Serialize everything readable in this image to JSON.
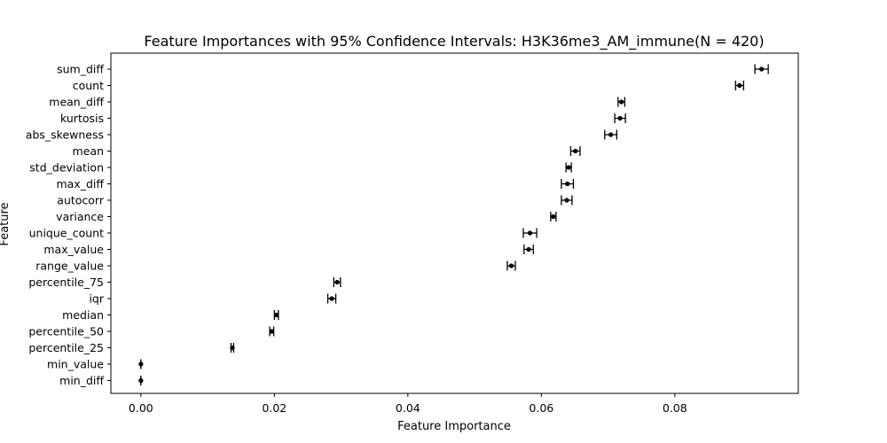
{
  "chart_data": {
    "type": "scatter",
    "title": "Feature Importances with 95% Confidence Intervals: H3K36me3_AM_immune(N = 420)",
    "xlabel": "Feature Importance",
    "ylabel": "Feature",
    "xlim": [
      -0.0045,
      0.0985
    ],
    "xticks": [
      0.0,
      0.02,
      0.04,
      0.06,
      0.08
    ],
    "xtick_labels": [
      "0.00",
      "0.02",
      "0.04",
      "0.06",
      "0.08"
    ],
    "grid": false,
    "marker_color": "#000000",
    "features": [
      {
        "name": "sum_diff",
        "importance": 0.093,
        "ci_low": 0.092,
        "ci_high": 0.094
      },
      {
        "name": "count",
        "importance": 0.0897,
        "ci_low": 0.0891,
        "ci_high": 0.0903
      },
      {
        "name": "mean_diff",
        "importance": 0.072,
        "ci_low": 0.0715,
        "ci_high": 0.0725
      },
      {
        "name": "kurtosis",
        "importance": 0.0718,
        "ci_low": 0.071,
        "ci_high": 0.0726
      },
      {
        "name": "abs_skewness",
        "importance": 0.0704,
        "ci_low": 0.0695,
        "ci_high": 0.0713
      },
      {
        "name": "mean",
        "importance": 0.0651,
        "ci_low": 0.0644,
        "ci_high": 0.0658
      },
      {
        "name": "std_deviation",
        "importance": 0.0641,
        "ci_low": 0.0637,
        "ci_high": 0.0645
      },
      {
        "name": "max_diff",
        "importance": 0.0639,
        "ci_low": 0.063,
        "ci_high": 0.0648
      },
      {
        "name": "autocorr",
        "importance": 0.0638,
        "ci_low": 0.063,
        "ci_high": 0.0646
      },
      {
        "name": "variance",
        "importance": 0.0618,
        "ci_low": 0.0614,
        "ci_high": 0.0622
      },
      {
        "name": "unique_count",
        "importance": 0.0583,
        "ci_low": 0.0573,
        "ci_high": 0.0593
      },
      {
        "name": "max_value",
        "importance": 0.0581,
        "ci_low": 0.0574,
        "ci_high": 0.0588
      },
      {
        "name": "range_value",
        "importance": 0.0555,
        "ci_low": 0.0549,
        "ci_high": 0.0561
      },
      {
        "name": "percentile_75",
        "importance": 0.0294,
        "ci_low": 0.0289,
        "ci_high": 0.0299
      },
      {
        "name": "iqr",
        "importance": 0.0286,
        "ci_low": 0.028,
        "ci_high": 0.0292
      },
      {
        "name": "median",
        "importance": 0.0203,
        "ci_low": 0.02,
        "ci_high": 0.0206
      },
      {
        "name": "percentile_50",
        "importance": 0.0196,
        "ci_low": 0.0193,
        "ci_high": 0.0199
      },
      {
        "name": "percentile_25",
        "importance": 0.0137,
        "ci_low": 0.0135,
        "ci_high": 0.0139
      },
      {
        "name": "min_value",
        "importance": 0.0,
        "ci_low": 0.0,
        "ci_high": 0.0
      },
      {
        "name": "min_diff",
        "importance": 0.0,
        "ci_low": 0.0,
        "ci_high": 0.0
      }
    ]
  }
}
